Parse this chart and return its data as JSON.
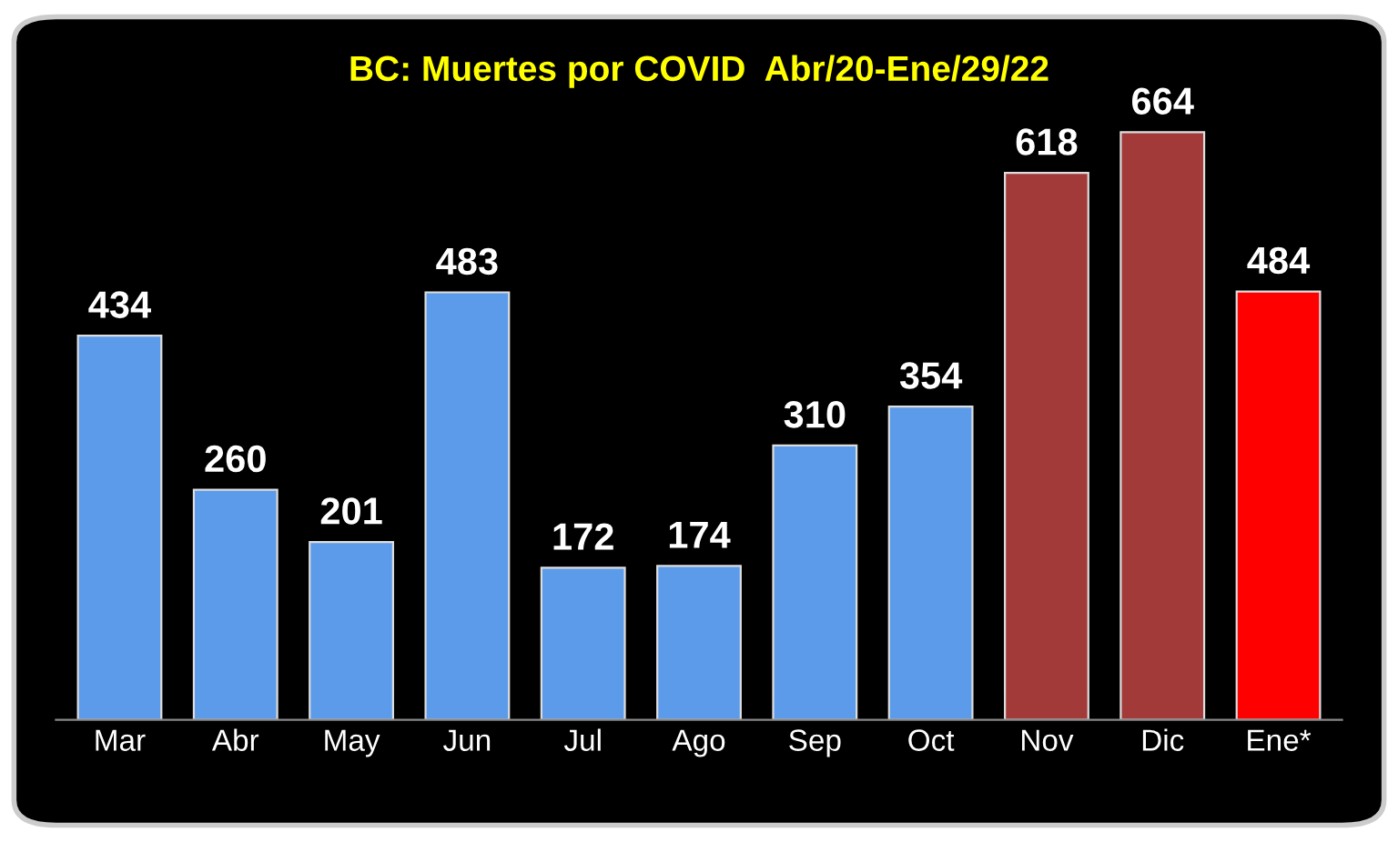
{
  "chart_data": {
    "type": "bar",
    "title": "BC: Muertes por COVID  Abr/20-Ene/29/22",
    "categories": [
      "Mar",
      "Abr",
      "May",
      "Jun",
      "Jul",
      "Ago",
      "Sep",
      "Oct",
      "Nov",
      "Dic",
      "Ene*"
    ],
    "values": [
      434,
      260,
      201,
      483,
      172,
      174,
      310,
      354,
      618,
      664,
      484
    ],
    "colors": [
      "#5b9bea",
      "#5b9bea",
      "#5b9bea",
      "#5b9bea",
      "#5b9bea",
      "#5b9bea",
      "#5b9bea",
      "#5b9bea",
      "#a33a3a",
      "#a33a3a",
      "#ff0000"
    ],
    "data_labels": true,
    "grid": false,
    "legend": false
  }
}
